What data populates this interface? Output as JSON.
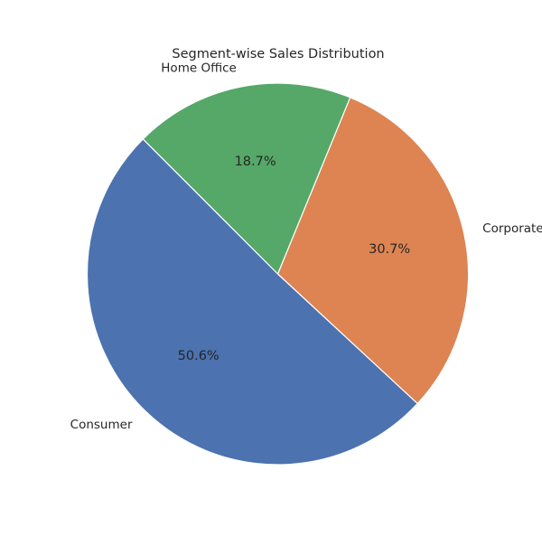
{
  "chart_data": {
    "type": "pie",
    "title": "Segment-wise Sales Distribution",
    "slices": [
      {
        "label": "Consumer",
        "value": 50.6,
        "pct_label": "50.6%",
        "color": "#4c72b0"
      },
      {
        "label": "Corporate",
        "value": 30.7,
        "pct_label": "30.7%",
        "color": "#dd8452"
      },
      {
        "label": "Home Office",
        "value": 18.7,
        "pct_label": "18.7%",
        "color": "#55a868"
      }
    ]
  }
}
